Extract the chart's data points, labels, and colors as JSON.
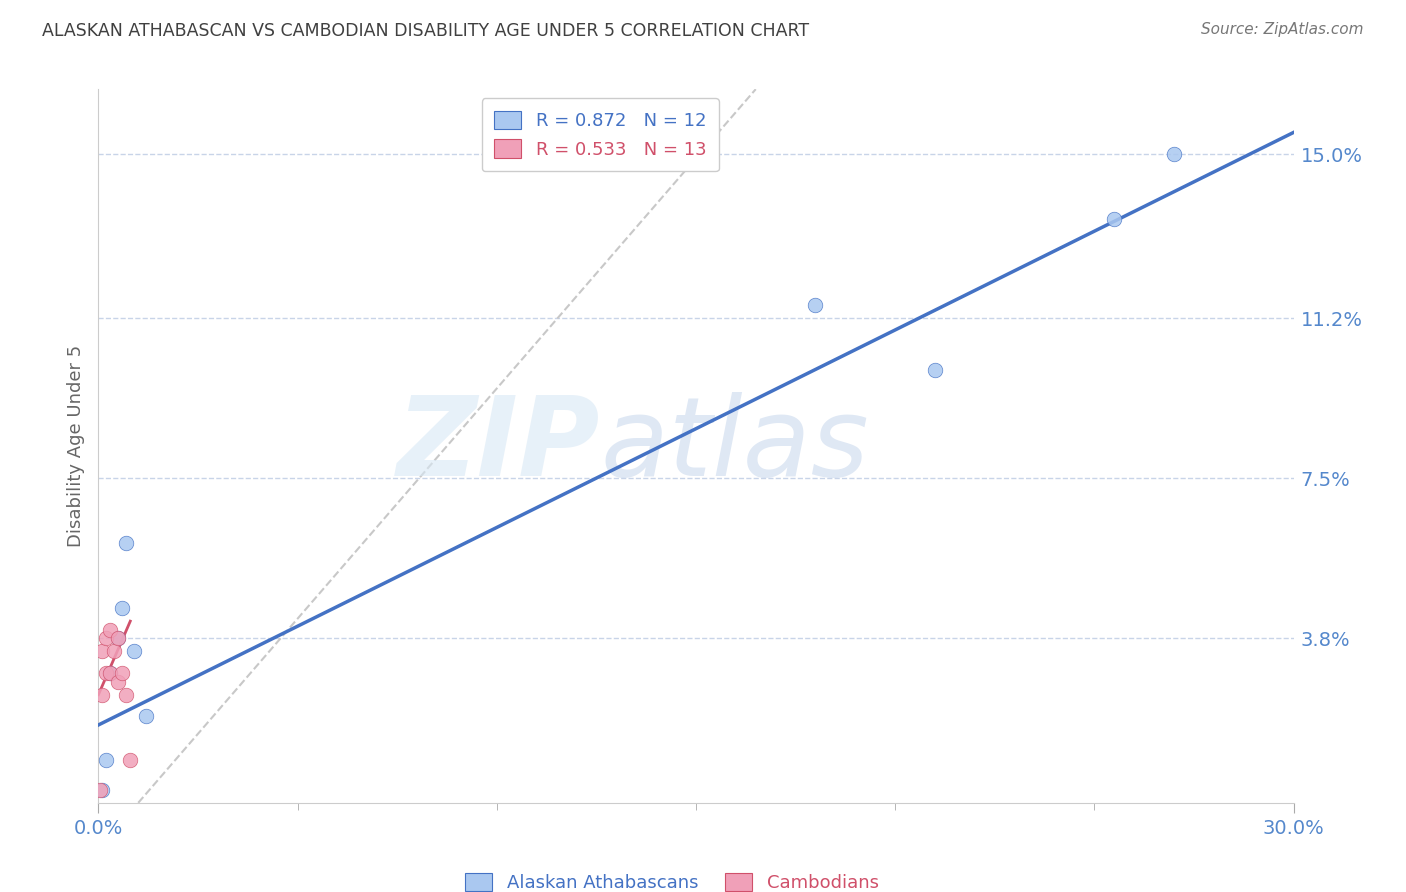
{
  "title": "ALASKAN ATHABASCAN VS CAMBODIAN DISABILITY AGE UNDER 5 CORRELATION CHART",
  "source": "Source: ZipAtlas.com",
  "ylabel": "Disability Age Under 5",
  "y_tick_labels": [
    "3.8%",
    "7.5%",
    "11.2%",
    "15.0%"
  ],
  "y_tick_vals": [
    0.038,
    0.075,
    0.112,
    0.15
  ],
  "xlim": [
    0.0,
    0.3
  ],
  "ylim": [
    0.0,
    0.165
  ],
  "legend_r1": "R = 0.872   N = 12",
  "legend_r2": "R = 0.533   N = 13",
  "watermark_zip": "ZIP",
  "watermark_atlas": "atlas",
  "alaskan_x": [
    0.001,
    0.002,
    0.003,
    0.005,
    0.006,
    0.007,
    0.009,
    0.012,
    0.18,
    0.21,
    0.255,
    0.27
  ],
  "alaskan_y": [
    0.003,
    0.01,
    0.03,
    0.038,
    0.045,
    0.06,
    0.035,
    0.02,
    0.115,
    0.1,
    0.135,
    0.15
  ],
  "cambodian_x": [
    0.0005,
    0.001,
    0.001,
    0.002,
    0.002,
    0.003,
    0.003,
    0.004,
    0.005,
    0.005,
    0.006,
    0.007,
    0.008
  ],
  "cambodian_y": [
    0.003,
    0.025,
    0.035,
    0.03,
    0.038,
    0.04,
    0.03,
    0.035,
    0.028,
    0.038,
    0.03,
    0.025,
    0.01
  ],
  "blue_line_start_x": 0.0,
  "blue_line_start_y": 0.018,
  "blue_line_end_x": 0.3,
  "blue_line_end_y": 0.155,
  "pink_line_start_x": 0.0,
  "pink_line_start_y": 0.025,
  "pink_line_end_x": 0.008,
  "pink_line_end_y": 0.042,
  "dash_line_start_x": 0.01,
  "dash_line_start_y": 0.0,
  "dash_line_end_x": 0.165,
  "dash_line_end_y": 0.165,
  "blue_scatter_color": "#aac8f0",
  "pink_scatter_color": "#f0a0b8",
  "blue_line_color": "#4472c4",
  "pink_line_color": "#d0506a",
  "dashed_line_color": "#c8c8c8",
  "grid_color": "#c8d4e8",
  "title_color": "#404040",
  "tick_label_color": "#5588cc",
  "background_color": "#ffffff",
  "marker_size": 110
}
